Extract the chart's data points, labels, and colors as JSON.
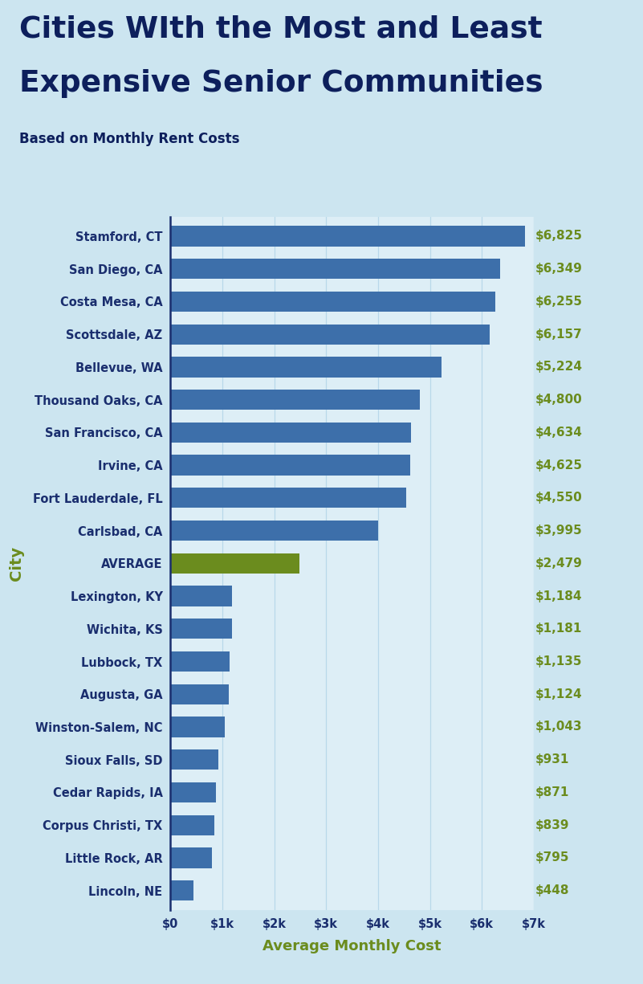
{
  "title_line1": "Cities WIth the Most and Least",
  "title_line2": "Expensive Senior Communities",
  "subtitle": "Based on Monthly Rent Costs",
  "xlabel": "Average Monthly Cost",
  "ylabel": "City",
  "background_color": "#cce5f0",
  "plot_background_color": "#ddeef6",
  "title_color": "#0d1f5c",
  "subtitle_color": "#0d1f5c",
  "xlabel_color": "#6b8c1e",
  "ylabel_color": "#6b8c1e",
  "value_label_color": "#6b8c1e",
  "bar_color_blue": "#3d6faa",
  "bar_color_green": "#6b8c1e",
  "grid_color": "#b8d8ea",
  "spine_color": "#1a2e6e",
  "tick_label_color": "#1a2e6e",
  "categories": [
    "Stamford, CT",
    "San Diego, CA",
    "Costa Mesa, CA",
    "Scottsdale, AZ",
    "Bellevue, WA",
    "Thousand Oaks, CA",
    "San Francisco, CA",
    "Irvine, CA",
    "Fort Lauderdale, FL",
    "Carlsbad, CA",
    "AVERAGE",
    "Lexington, KY",
    "Wichita, KS",
    "Lubbock, TX",
    "Augusta, GA",
    "Winston-Salem, NC",
    "Sioux Falls, SD",
    "Cedar Rapids, IA",
    "Corpus Christi, TX",
    "Little Rock, AR",
    "Lincoln, NE"
  ],
  "values": [
    6825,
    6349,
    6255,
    6157,
    5224,
    4800,
    4634,
    4625,
    4550,
    3995,
    2479,
    1184,
    1181,
    1135,
    1124,
    1043,
    931,
    871,
    839,
    795,
    448
  ],
  "value_labels": [
    "$6,825",
    "$6,349",
    "$6,255",
    "$6,157",
    "$5,224",
    "$4,800",
    "$4,634",
    "$4,625",
    "$4,550",
    "$3,995",
    "$2,479",
    "$1,184",
    "$1,181",
    "$1,135",
    "$1,124",
    "$1,043",
    "$931",
    "$871",
    "$839",
    "$795",
    "$448"
  ],
  "bar_colors": [
    "#3d6faa",
    "#3d6faa",
    "#3d6faa",
    "#3d6faa",
    "#3d6faa",
    "#3d6faa",
    "#3d6faa",
    "#3d6faa",
    "#3d6faa",
    "#3d6faa",
    "#6b8c1e",
    "#3d6faa",
    "#3d6faa",
    "#3d6faa",
    "#3d6faa",
    "#3d6faa",
    "#3d6faa",
    "#3d6faa",
    "#3d6faa",
    "#3d6faa",
    "#3d6faa"
  ],
  "xlim": [
    0,
    7000
  ],
  "xtick_values": [
    0,
    1000,
    2000,
    3000,
    4000,
    5000,
    6000,
    7000
  ],
  "xtick_labels": [
    "$0",
    "$1k",
    "$2k",
    "$3k",
    "$4k",
    "$5k",
    "$6k",
    "$7k"
  ]
}
